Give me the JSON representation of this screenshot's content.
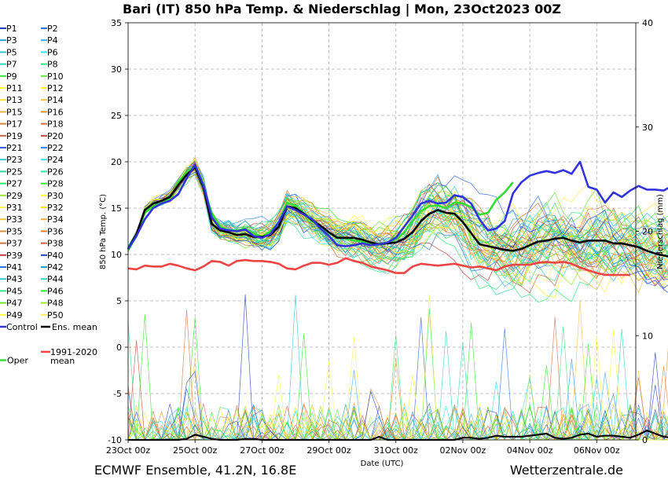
{
  "chart_data": {
    "type": "line",
    "title": "Bari  (IT)  850 hPa Temp. & Niederschlag | Mon, 23Oct2023 00Z",
    "xlabel": "Date (UTC)",
    "ylabel": "850 hPa Temp. (°C)",
    "y2label": "Niederschlag (mm)",
    "ylim": [
      -10,
      35
    ],
    "y2lim": [
      0,
      40
    ],
    "yticks": [
      "35",
      "30",
      "25",
      "20",
      "15",
      "10",
      "5",
      "0",
      "-5",
      "-10"
    ],
    "y2ticks": [
      "40",
      "30",
      "20",
      "10",
      "0"
    ],
    "x_ticks": [
      "23Oct 00z",
      "25Oct 00z",
      "27Oct 00z",
      "29Oct 00z",
      "31Oct 00z",
      "02Nov 00z",
      "04Nov 00z",
      "06Nov 00z"
    ],
    "grid": true,
    "legend_position": "left",
    "footer_left": "ECMWF Ensemble, 41.2N, 16.8E",
    "footer_right": "Wetterzentrale.de",
    "legend": {
      "members": [
        "P1",
        "P2",
        "P3",
        "P4",
        "P5",
        "P6",
        "P7",
        "P8",
        "P9",
        "P10",
        "P11",
        "P12",
        "P13",
        "P14",
        "P15",
        "P16",
        "P17",
        "P18",
        "P19",
        "P20",
        "P21",
        "P22",
        "P23",
        "P24",
        "P25",
        "P26",
        "P27",
        "P28",
        "P29",
        "P30",
        "P31",
        "P32",
        "P33",
        "P34",
        "P35",
        "P36",
        "P37",
        "P38",
        "P39",
        "P40",
        "P41",
        "P42",
        "P43",
        "P44",
        "P45",
        "P46",
        "P47",
        "P48",
        "P49",
        "P50"
      ],
      "member_colors": [
        "#1f3fbf",
        "#2f6fdf",
        "#2a9fd8",
        "#3fa9ff",
        "#33c6d6",
        "#2ee6e6",
        "#33d6b4",
        "#33e680",
        "#33e633",
        "#66e633",
        "#ffff33",
        "#ffee55",
        "#ffdd33",
        "#f0c040",
        "#f0b040",
        "#e09030",
        "#e08030",
        "#d07040",
        "#c86040",
        "#c04040",
        "#2f5fdf",
        "#3f8fff",
        "#33c6d6",
        "#33dfe6",
        "#33d6a4",
        "#2ee6a0",
        "#33e660",
        "#33e633",
        "#99e633",
        "#ffff33",
        "#ffee55",
        "#ffdd33",
        "#f0c040",
        "#f0b040",
        "#e09030",
        "#e08030",
        "#d07040",
        "#c86040",
        "#c04040",
        "#1f3fbf",
        "#2f6fdf",
        "#2a9fd8",
        "#33c6d6",
        "#33d6b4",
        "#33e680",
        "#33e633",
        "#66e633",
        "#99e633",
        "#ffff33",
        "#ffee55"
      ],
      "control": "Control",
      "ens_mean": "Ens. mean",
      "clim_mean": [
        "1991-2020",
        "mean"
      ],
      "oper": "Oper",
      "control_color": "#3333dd",
      "ens_mean_color": "#000000",
      "clim_color": "#ee4444",
      "oper_color": "#33dd33"
    },
    "series": [
      {
        "name": "Control",
        "x_step_h": 6,
        "values": [
          10.6,
          12.0,
          13.8,
          15.0,
          15.5,
          15.8,
          16.5,
          18.2,
          19.7,
          17.5,
          14.0,
          12.8,
          12.6,
          12.5,
          12.7,
          12.0,
          11.8,
          12.2,
          13.5,
          15.2,
          14.8,
          14.3,
          13.8,
          12.8,
          12.0,
          11.0,
          10.9,
          11.0,
          11.2,
          11.0,
          11.1,
          11.3,
          11.8,
          13.0,
          14.2,
          15.5,
          15.8,
          15.5,
          15.6,
          16.4,
          16.2,
          15.5,
          13.8,
          12.6,
          12.8,
          13.6,
          16.6,
          17.8,
          18.5,
          18.8,
          19.0,
          18.8,
          19.1,
          18.7,
          20.0,
          17.3,
          17.0,
          15.6,
          16.7,
          16.2,
          16.9,
          17.4,
          17.0,
          17.0,
          16.9,
          17.4,
          17.6
        ]
      },
      {
        "name": "Ens. mean",
        "x_step_h": 6,
        "values": [
          10.6,
          12.2,
          14.8,
          15.5,
          15.8,
          16.2,
          17.5,
          18.6,
          19.4,
          17.3,
          13.3,
          12.6,
          12.4,
          12.1,
          12.2,
          11.9,
          11.9,
          12.1,
          13.0,
          15.2,
          15.0,
          14.4,
          13.7,
          13.1,
          12.4,
          11.8,
          11.8,
          11.8,
          11.6,
          11.3,
          11.1,
          11.2,
          11.3,
          11.7,
          12.4,
          13.6,
          14.4,
          14.8,
          14.5,
          14.4,
          13.5,
          12.3,
          11.1,
          10.9,
          10.7,
          10.5,
          10.4,
          10.6,
          11.0,
          11.4,
          11.5,
          11.7,
          11.8,
          11.5,
          11.3,
          11.5,
          11.5,
          11.5,
          11.2,
          11.2,
          11.0,
          10.8,
          10.4,
          10.1,
          9.9,
          9.7,
          9.4
        ]
      },
      {
        "name": "1991-2020 mean",
        "x_step_h": 6,
        "values": [
          8.5,
          8.4,
          8.8,
          8.7,
          8.7,
          9.0,
          8.8,
          8.5,
          8.3,
          8.7,
          9.3,
          9.2,
          8.8,
          9.3,
          9.4,
          9.3,
          9.3,
          9.2,
          9.0,
          8.5,
          8.4,
          8.8,
          9.1,
          9.1,
          8.9,
          9.1,
          9.6,
          9.3,
          9.1,
          8.7,
          8.5,
          8.3,
          8.0,
          8.0,
          8.7,
          9.0,
          8.9,
          8.8,
          8.9,
          9.0,
          8.8,
          8.6,
          8.7,
          8.5,
          8.3,
          8.7,
          8.9,
          8.9,
          8.9,
          9.1,
          9.2,
          9.1,
          9.2,
          9.0,
          8.6,
          8.3,
          8.0,
          7.8,
          7.8,
          7.8,
          7.8
        ]
      },
      {
        "name": "Oper",
        "x_step_h": 6,
        "values": [
          10.5,
          12.0,
          14.5,
          15.2,
          15.5,
          16.0,
          17.8,
          18.9,
          19.4,
          17.2,
          14.5,
          13.0,
          12.6,
          12.6,
          12.8,
          12.3,
          11.9,
          12.5,
          13.4,
          15.6,
          15.2,
          14.5,
          13.6,
          13.0,
          12.3,
          11.9,
          11.7,
          11.5,
          11.4,
          11.2,
          11.1,
          11.3,
          11.6,
          12.4,
          13.6,
          14.7,
          15.2,
          15.3,
          15.0,
          15.6,
          15.5,
          15.1,
          14.3,
          14.5,
          15.9,
          16.7,
          17.8
        ]
      },
      {
        "name": "Ens. mean Niederschlag",
        "unit": "mm",
        "x_step_h": 6,
        "values": [
          0,
          0,
          0,
          0,
          0,
          0,
          0,
          0.1,
          0.5,
          0.3,
          0.1,
          0,
          0,
          0,
          0.1,
          0.1,
          0,
          0,
          0,
          0,
          0,
          0,
          0,
          0,
          0,
          0,
          0,
          0,
          0,
          0,
          0.3,
          0,
          0,
          0,
          0,
          0,
          0,
          0,
          0,
          0,
          0.2,
          0.2,
          0.1,
          0.2,
          0.4,
          0.3,
          0.3,
          0.3,
          0.4,
          0.5,
          0.6,
          0.2,
          0.1,
          0.2,
          0.5,
          0.6,
          0.3,
          0.4,
          0.4,
          0.3,
          0.2,
          0.5,
          0.9,
          0.6,
          0.3,
          0.2,
          0.2
        ]
      }
    ]
  }
}
